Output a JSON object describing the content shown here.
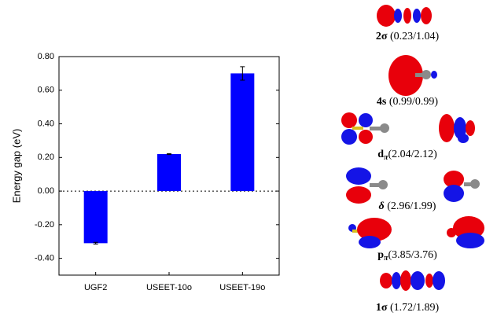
{
  "chart_data": {
    "type": "bar",
    "ylabel": "Energy gap (eV)",
    "categories": [
      "UGF2",
      "USEET-10o",
      "USEET-19o"
    ],
    "values": [
      -0.31,
      0.22,
      0.7
    ],
    "errors": [
      0.005,
      0.003,
      0.04
    ],
    "color": "#0000ff",
    "ylim": [
      -0.5,
      0.8
    ],
    "yticks": [
      {
        "value": -0.4,
        "label": "-0.40"
      },
      {
        "value": -0.2,
        "label": "-0.20"
      },
      {
        "value": 0,
        "label": "0.00"
      },
      {
        "value": 0.2,
        "label": "0.20"
      },
      {
        "value": 0.4,
        "label": "0.40"
      },
      {
        "value": 0.6,
        "label": "0.60"
      },
      {
        "value": 0.8,
        "label": "0.80"
      }
    ],
    "zero_line": true
  },
  "orbitals": [
    {
      "symbol": "2σ",
      "occupation": "(0.23/1.04)"
    },
    {
      "symbol": "4s",
      "occupation": "(0.99/0.99)"
    },
    {
      "symbol": "d",
      "subscript": "π",
      "occupation": "(2.04/2.12)"
    },
    {
      "symbol": "δ",
      "occupation": "(2.96/1.99)"
    },
    {
      "symbol": "p",
      "subscript": "π",
      "occupation": "(3.85/3.76)"
    },
    {
      "symbol": "1σ",
      "occupation": "(1.72/1.89)"
    }
  ]
}
